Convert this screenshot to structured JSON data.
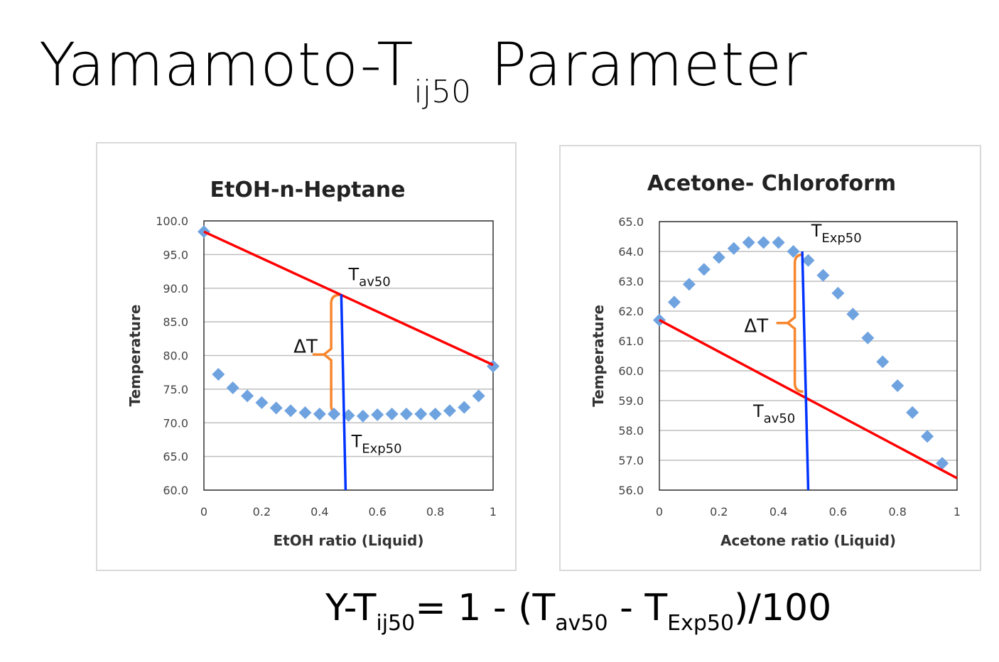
{
  "slide": {
    "title_main": "Yamamoto-T",
    "title_sub": "ij50",
    "title_rest": " Parameter",
    "formula": {
      "p1": "Y-T",
      "s1": "ij50",
      "p2": "= 1 - (T",
      "s2": "av50",
      "p3": " - T",
      "s3": "Exp50",
      "p4": ")/100"
    }
  },
  "colors": {
    "points": "#6fa3e0",
    "avg_line": "#ff0000",
    "exp_line": "#0033ff",
    "bracket": "#f7862d",
    "grid": "#bfbfbf"
  },
  "chart_data": [
    {
      "type": "scatter",
      "title": "EtOH-n-Heptane",
      "xlabel": "EtOH ratio (Liquid)",
      "ylabel": "Temperature",
      "xlim": [
        0,
        1
      ],
      "ylim": [
        60,
        100
      ],
      "xticks": [
        "0",
        "0.2",
        "0.4",
        "0.6",
        "0.8",
        "1"
      ],
      "xtick_values": [
        0,
        0.2,
        0.4,
        0.6,
        0.8,
        1
      ],
      "yticks": [
        "100.0",
        "95.0",
        "90.0",
        "85.0",
        "80.0",
        "75.0",
        "70.0",
        "65.0",
        "60.0"
      ],
      "ytick_values": [
        100,
        95,
        90,
        85,
        80,
        75,
        70,
        65,
        60
      ],
      "grid": true,
      "points": {
        "x": [
          0,
          0.05,
          0.1,
          0.15,
          0.2,
          0.25,
          0.3,
          0.35,
          0.4,
          0.45,
          0.5,
          0.55,
          0.6,
          0.65,
          0.7,
          0.75,
          0.8,
          0.85,
          0.9,
          0.95,
          1
        ],
        "y": [
          98.4,
          77.2,
          75.2,
          74.0,
          73.0,
          72.2,
          71.8,
          71.5,
          71.3,
          71.3,
          71.1,
          71.0,
          71.2,
          71.3,
          71.3,
          71.3,
          71.3,
          71.8,
          72.3,
          74.0,
          78.4
        ]
      },
      "avg_line": {
        "x": [
          0,
          1
        ],
        "y": [
          98.4,
          78.6
        ]
      },
      "exp_line": {
        "x": [
          0.475,
          0.49
        ],
        "y": [
          89.1,
          60
        ]
      },
      "delta_bracket": {
        "x": 0.44,
        "y_top": 89.0,
        "y_bottom": 71.3
      },
      "labels": {
        "tav": {
          "main": "T",
          "sub": "av50",
          "x": 0.5,
          "y": 91.2
        },
        "texp": {
          "main": "T",
          "sub": "Exp50",
          "x": 0.51,
          "y": 66.4
        },
        "delta": {
          "text": "ΔT",
          "x": 0.31,
          "y": 80.4
        }
      }
    },
    {
      "type": "scatter",
      "title": "Acetone- Chloroform",
      "xlabel": "Acetone ratio (Liquid)",
      "ylabel": "Temperature",
      "xlim": [
        0,
        1
      ],
      "ylim": [
        56,
        65
      ],
      "xticks": [
        "0",
        "0.2",
        "0.4",
        "0.6",
        "0.8",
        "1"
      ],
      "xtick_values": [
        0,
        0.2,
        0.4,
        0.6,
        0.8,
        1
      ],
      "yticks": [
        "65.0",
        "64.0",
        "63.0",
        "62.0",
        "61.0",
        "60.0",
        "59.0",
        "58.0",
        "57.0",
        "56.0"
      ],
      "ytick_values": [
        65,
        64,
        63,
        62,
        61,
        60,
        59,
        58,
        57,
        56
      ],
      "grid": true,
      "points": {
        "x": [
          0,
          0.05,
          0.1,
          0.15,
          0.2,
          0.25,
          0.3,
          0.35,
          0.4,
          0.45,
          0.5,
          0.55,
          0.6,
          0.65,
          0.7,
          0.75,
          0.8,
          0.85,
          0.9,
          0.95
        ],
        "y": [
          61.7,
          62.3,
          62.9,
          63.4,
          63.8,
          64.1,
          64.3,
          64.3,
          64.3,
          64.0,
          63.7,
          63.2,
          62.6,
          61.9,
          61.1,
          60.3,
          59.5,
          58.6,
          57.8,
          56.9
        ]
      },
      "avg_line": {
        "x": [
          0,
          1
        ],
        "y": [
          61.7,
          56.4
        ]
      },
      "exp_line": {
        "x": [
          0.48,
          0.5
        ],
        "y": [
          64.0,
          56
        ]
      },
      "delta_bracket": {
        "x": 0.455,
        "y_top": 63.9,
        "y_bottom": 59.3
      },
      "labels": {
        "tav": {
          "main": "T",
          "sub": "av50",
          "x": 0.315,
          "y": 58.45
        },
        "texp": {
          "main": "T",
          "sub": "Exp50",
          "x": 0.51,
          "y": 64.5
        },
        "delta": {
          "text": "ΔT",
          "x": 0.285,
          "y": 61.3
        }
      }
    }
  ]
}
